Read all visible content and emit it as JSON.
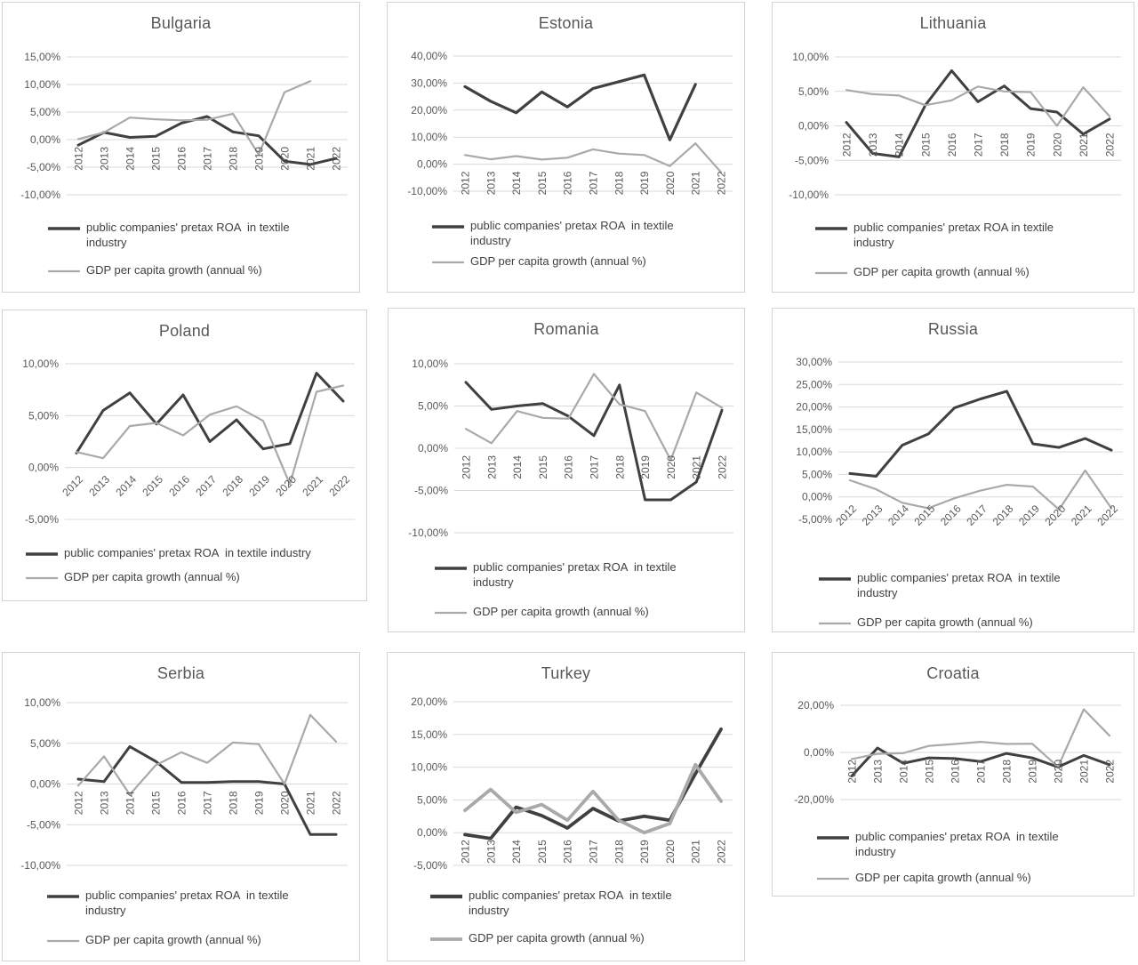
{
  "colors": {
    "roa_line": "#404040",
    "gdp_line": "#a9a9a9",
    "grid": "#d9d9d9",
    "axis_text": "#595959",
    "title_text": "#595959",
    "legend_text": "#404040",
    "panel_border": "#d3d3d3"
  },
  "chart_data": [
    {
      "id": "bulgaria",
      "type": "line",
      "title": "Bulgaria",
      "categories": [
        "2012",
        "2013",
        "2014",
        "2015",
        "2016",
        "2017",
        "2018",
        "2019",
        "2020",
        "2021",
        "2022"
      ],
      "y_ticks": [
        15,
        10,
        5,
        0,
        -5,
        -10
      ],
      "y_tick_labels": [
        "15,00%",
        "10,00%",
        "5,00%",
        "0,00%",
        "-5,00%",
        "-10,00%"
      ],
      "ylim": [
        -10,
        15
      ],
      "x_label_rotation": 90,
      "grid": true,
      "legend_position": "bottom-left",
      "series": [
        {
          "name": "public companies' pretax ROA  in textile\nindustry",
          "values": [
            -1.0,
            1.3,
            0.4,
            0.6,
            3.0,
            4.2,
            1.4,
            0.7,
            -3.9,
            -4.5,
            -3.4
          ]
        },
        {
          "name": "GDP per capita growth (annual %)",
          "values": [
            0.1,
            1.3,
            4.0,
            3.7,
            3.5,
            3.6,
            4.7,
            -2.7,
            8.6,
            10.6,
            null
          ]
        }
      ]
    },
    {
      "id": "estonia",
      "type": "line",
      "title": "Estonia",
      "categories": [
        "2012",
        "2013",
        "2014",
        "2015",
        "2016",
        "2017",
        "2018",
        "2019",
        "2020",
        "2021",
        "2022"
      ],
      "y_ticks": [
        40,
        30,
        20,
        10,
        0,
        -10
      ],
      "y_tick_labels": [
        "40,00%",
        "30,00%",
        "20,00%",
        "10,00%",
        "0,00%",
        "-10,00%"
      ],
      "ylim": [
        -10,
        40
      ],
      "x_label_rotation": 90,
      "grid": true,
      "legend_position": "bottom-left",
      "series": [
        {
          "name": "public companies' pretax ROA  in textile\nindustry",
          "values": [
            28.7,
            23.3,
            19.0,
            26.7,
            21.2,
            28.0,
            30.5,
            33.0,
            9.0,
            29.5,
            null
          ]
        },
        {
          "name": "GDP per capita growth (annual %)",
          "values": [
            3.4,
            1.8,
            3.0,
            1.7,
            2.4,
            5.5,
            3.9,
            3.4,
            -0.7,
            7.7,
            -3.0
          ]
        }
      ]
    },
    {
      "id": "lithuania",
      "type": "line",
      "title": "Lithuania",
      "categories": [
        "2012",
        "2013",
        "2014",
        "2015",
        "2016",
        "2017",
        "2018",
        "2019",
        "2020",
        "2021",
        "2022"
      ],
      "y_ticks": [
        10,
        5,
        0,
        -5,
        -10
      ],
      "y_tick_labels": [
        "10,00%",
        "5,00%",
        "0,00%",
        "-5,00%",
        "-10,00%"
      ],
      "ylim": [
        -10,
        10
      ],
      "x_label_rotation": 90,
      "grid": true,
      "legend_position": "bottom-left",
      "series": [
        {
          "name": "public companies' pretax ROA in textile\nindustry",
          "values": [
            0.5,
            -4.0,
            -4.5,
            3.0,
            8.0,
            3.5,
            5.8,
            2.5,
            2.0,
            -1.2,
            1.0
          ]
        },
        {
          "name": "GDP per capita growth (annual %)",
          "values": [
            5.2,
            4.6,
            4.4,
            3.0,
            3.7,
            5.7,
            5.0,
            4.9,
            0.0,
            5.6,
            1.4
          ]
        }
      ]
    },
    {
      "id": "poland",
      "type": "line",
      "title": "Poland",
      "categories": [
        "2012",
        "2013",
        "2014",
        "2015",
        "2016",
        "2017",
        "2018",
        "2019",
        "2020",
        "2021",
        "2022"
      ],
      "y_ticks": [
        10,
        5,
        0,
        -5
      ],
      "y_tick_labels": [
        "10,00%",
        "5,00%",
        "0,00%",
        "-5,00%"
      ],
      "ylim": [
        -5,
        10
      ],
      "x_label_rotation": 45,
      "grid": true,
      "legend_position": "bottom-left",
      "series": [
        {
          "name": "public companies' pretax ROA  in textile industry",
          "values": [
            1.4,
            5.5,
            7.2,
            4.2,
            7.0,
            2.5,
            4.6,
            1.8,
            2.3,
            9.1,
            6.4
          ]
        },
        {
          "name": "GDP per capita growth (annual %)",
          "values": [
            1.5,
            0.9,
            4.0,
            4.3,
            3.1,
            5.1,
            5.9,
            4.5,
            -1.6,
            7.3,
            7.9
          ]
        }
      ]
    },
    {
      "id": "romania",
      "type": "line",
      "title": "Romania",
      "categories": [
        "2012",
        "2013",
        "2014",
        "2015",
        "2016",
        "2017",
        "2018",
        "2019",
        "2020",
        "2021",
        "2022"
      ],
      "y_ticks": [
        10,
        5,
        0,
        -5,
        -10
      ],
      "y_tick_labels": [
        "10,00%",
        "5,00%",
        "0,00%",
        "-5,00%",
        "-10,00%"
      ],
      "ylim": [
        -10,
        10
      ],
      "x_label_rotation": 90,
      "grid": true,
      "legend_position": "bottom-left",
      "series": [
        {
          "name": "public companies' pretax ROA  in textile\nindustry",
          "values": [
            7.8,
            4.6,
            5.0,
            5.3,
            3.8,
            1.5,
            7.5,
            -6.1,
            -6.1,
            -4.0,
            4.5
          ]
        },
        {
          "name": "GDP per capita growth (annual %)",
          "values": [
            2.3,
            0.6,
            4.4,
            3.6,
            3.5,
            8.8,
            5.2,
            4.4,
            -1.4,
            6.6,
            4.8
          ]
        }
      ]
    },
    {
      "id": "russia",
      "type": "line",
      "title": "Russia",
      "categories": [
        "2012",
        "2013",
        "2014",
        "2015",
        "2016",
        "2017",
        "2018",
        "2019",
        "2020",
        "2021",
        "2022"
      ],
      "y_ticks": [
        30,
        25,
        20,
        15,
        10,
        5,
        0,
        -5
      ],
      "y_tick_labels": [
        "30,00%",
        "25,00%",
        "20,00%",
        "15,00%",
        "10,00%",
        "5,00%",
        "0,00%",
        "-5,00%"
      ],
      "ylim": [
        -5,
        30
      ],
      "x_label_rotation": 45,
      "grid": true,
      "legend_position": "bottom-left",
      "series": [
        {
          "name": "public companies' pretax ROA  in textile\nindustry",
          "values": [
            5.2,
            4.6,
            11.5,
            14.0,
            19.8,
            21.8,
            23.5,
            11.8,
            11.0,
            13.0,
            10.4
          ]
        },
        {
          "name": "GDP per capita growth (annual %)",
          "values": [
            3.7,
            1.7,
            -1.3,
            -2.5,
            -0.3,
            1.4,
            2.7,
            2.3,
            -2.8,
            5.9,
            -2.5
          ]
        }
      ]
    },
    {
      "id": "serbia",
      "type": "line",
      "title": "Serbia",
      "categories": [
        "2012",
        "2013",
        "2014",
        "2015",
        "2016",
        "2017",
        "2018",
        "2019",
        "2020",
        "2021",
        "2022"
      ],
      "y_ticks": [
        10,
        5,
        0,
        -5,
        -10
      ],
      "y_tick_labels": [
        "10,00%",
        "5,00%",
        "0,00%",
        "-5,00%",
        "-10,00%"
      ],
      "ylim": [
        -10,
        10
      ],
      "x_label_rotation": 90,
      "grid": true,
      "legend_position": "bottom-left",
      "series": [
        {
          "name": "public companies' pretax ROA  in textile\nindustry",
          "values": [
            0.6,
            0.3,
            4.6,
            2.8,
            0.2,
            0.2,
            0.3,
            0.3,
            0.0,
            -6.2,
            -6.2
          ]
        },
        {
          "name": "GDP per capita growth (annual %)",
          "values": [
            -0.2,
            3.4,
            -1.3,
            2.3,
            3.9,
            2.6,
            5.1,
            4.9,
            0.0,
            8.5,
            5.2
          ]
        }
      ]
    },
    {
      "id": "turkey",
      "type": "line",
      "title": "Turkey",
      "categories": [
        "2012",
        "2013",
        "2014",
        "2015",
        "2016",
        "2017",
        "2018",
        "2019",
        "2020",
        "2021",
        "2022"
      ],
      "y_ticks": [
        20,
        15,
        10,
        5,
        0,
        -5
      ],
      "y_tick_labels": [
        "20,00%",
        "15,00%",
        "10,00%",
        "5,00%",
        "0,00%",
        "-5,00%"
      ],
      "ylim": [
        -5,
        20
      ],
      "x_label_rotation": 90,
      "grid": true,
      "legend_position": "bottom-left",
      "series": [
        {
          "name": "public companies' pretax ROA  in textile\nindustry",
          "values": [
            -0.3,
            -0.9,
            3.9,
            2.6,
            0.7,
            3.7,
            1.8,
            2.5,
            1.9,
            9.0,
            15.8
          ]
        },
        {
          "name": "GDP per capita growth (annual %)",
          "values": [
            3.4,
            6.6,
            3.1,
            4.3,
            1.9,
            6.3,
            1.9,
            0.0,
            1.4,
            10.4,
            4.8
          ]
        }
      ]
    },
    {
      "id": "croatia",
      "type": "line",
      "title": "Croatia",
      "categories": [
        "2012",
        "2013",
        "2014",
        "2015",
        "2016",
        "2017",
        "2018",
        "2019",
        "2020",
        "2021",
        "2022"
      ],
      "y_ticks": [
        20,
        0,
        -20
      ],
      "y_tick_labels": [
        "20,00%",
        "0,00%",
        "-20,00%"
      ],
      "ylim": [
        -20,
        20
      ],
      "x_label_rotation": 90,
      "grid": true,
      "legend_position": "bottom-left",
      "series": [
        {
          "name": "public companies' pretax ROA  in textile\nindustry",
          "values": [
            -10.0,
            1.9,
            -4.6,
            -2.3,
            -2.6,
            -3.9,
            -0.4,
            -2.3,
            -6.2,
            -1.3,
            -5.2
          ]
        },
        {
          "name": "GDP per capita growth (annual %)",
          "values": [
            -2.8,
            -0.6,
            -0.3,
            2.8,
            3.6,
            4.5,
            3.6,
            3.7,
            -6.1,
            18.3,
            7.1
          ]
        }
      ]
    }
  ]
}
